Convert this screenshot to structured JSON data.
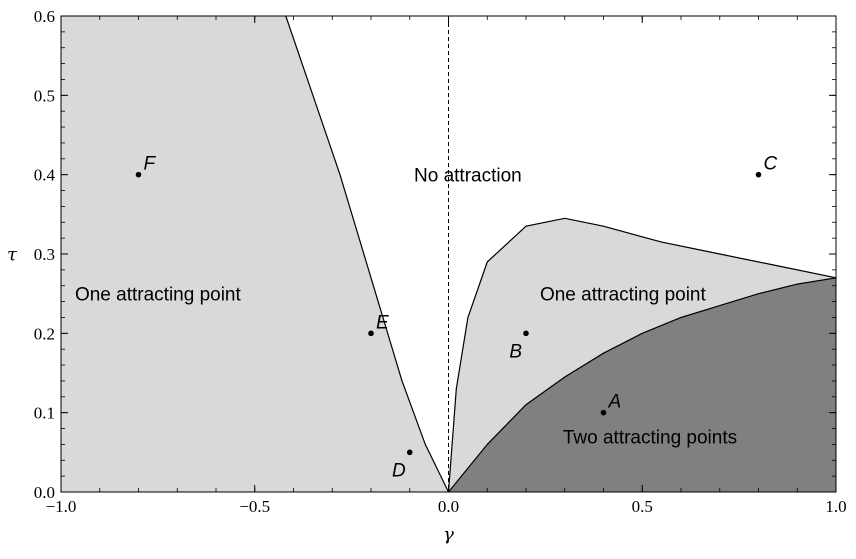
{
  "chart_data": {
    "type": "area",
    "xlabel": "γ",
    "ylabel": "τ",
    "xlim": [
      -1.0,
      1.0
    ],
    "ylim": [
      0.0,
      0.6
    ],
    "xticks": [
      -1.0,
      -0.5,
      0.0,
      0.5,
      1.0
    ],
    "xtick_labels": [
      "−1.0",
      "−0.5",
      "0.0",
      "0.5",
      "1.0"
    ],
    "yticks": [
      0.0,
      0.1,
      0.2,
      0.3,
      0.4,
      0.5,
      0.6
    ],
    "ytick_labels": [
      "0.0",
      "0.1",
      "0.2",
      "0.3",
      "0.4",
      "0.5",
      "0.6"
    ],
    "grid": false,
    "colors": {
      "light_region": "#d9d9d9",
      "dark_region": "#808080",
      "background": "#ffffff",
      "line": "#000000"
    },
    "boundaries": {
      "left_curve": [
        [
          -0.42,
          0.6
        ],
        [
          -0.35,
          0.5
        ],
        [
          -0.28,
          0.4
        ],
        [
          -0.2,
          0.27
        ],
        [
          -0.12,
          0.14
        ],
        [
          -0.06,
          0.06
        ],
        [
          0.0,
          0.0
        ]
      ],
      "upper_curve": [
        [
          0.0,
          0.0
        ],
        [
          0.02,
          0.13
        ],
        [
          0.05,
          0.22
        ],
        [
          0.1,
          0.29
        ],
        [
          0.2,
          0.335
        ],
        [
          0.3,
          0.345
        ],
        [
          0.4,
          0.335
        ],
        [
          0.55,
          0.315
        ],
        [
          0.7,
          0.3
        ],
        [
          0.85,
          0.285
        ],
        [
          1.0,
          0.27
        ]
      ],
      "lower_curve": [
        [
          0.0,
          0.0
        ],
        [
          0.1,
          0.06
        ],
        [
          0.2,
          0.11
        ],
        [
          0.3,
          0.145
        ],
        [
          0.4,
          0.175
        ],
        [
          0.5,
          0.2
        ],
        [
          0.6,
          0.22
        ],
        [
          0.7,
          0.235
        ],
        [
          0.8,
          0.25
        ],
        [
          0.9,
          0.262
        ],
        [
          1.0,
          0.27
        ]
      ],
      "dashed_line_x": 0.0
    },
    "regions": [
      {
        "label": "One attracting point",
        "x": -0.75,
        "y": 0.25,
        "fill": "light"
      },
      {
        "label": "No attraction",
        "x": 0.05,
        "y": 0.4,
        "fill": "white"
      },
      {
        "label": "One attracting point",
        "x": 0.45,
        "y": 0.25,
        "fill": "light"
      },
      {
        "label": "Two attracting points",
        "x": 0.52,
        "y": 0.07,
        "fill": "dark"
      }
    ],
    "points": [
      {
        "label": "A",
        "x": 0.4,
        "y": 0.1,
        "anchor": "above-right"
      },
      {
        "label": "B",
        "x": 0.2,
        "y": 0.2,
        "anchor": "below-left"
      },
      {
        "label": "C",
        "x": 0.8,
        "y": 0.4,
        "anchor": "above-right"
      },
      {
        "label": "D",
        "x": -0.1,
        "y": 0.05,
        "anchor": "below-left"
      },
      {
        "label": "E",
        "x": -0.2,
        "y": 0.2,
        "anchor": "above-right"
      },
      {
        "label": "F",
        "x": -0.8,
        "y": 0.4,
        "anchor": "above-right"
      }
    ]
  }
}
